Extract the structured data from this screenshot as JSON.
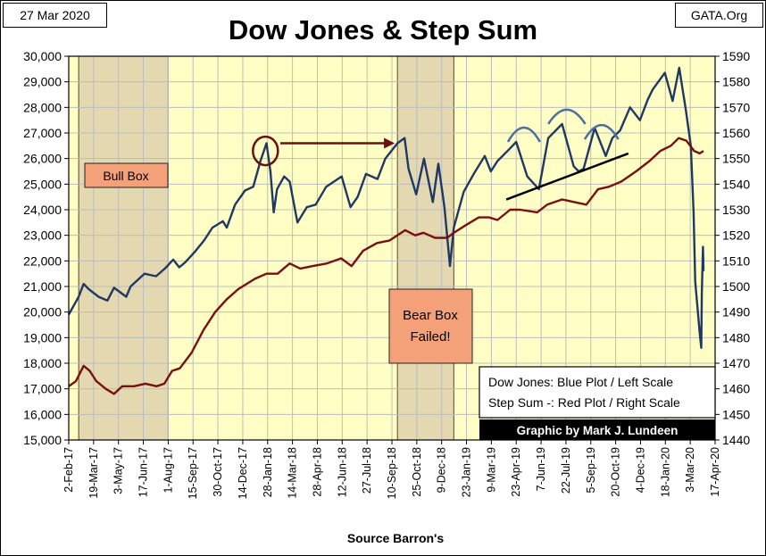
{
  "header": {
    "date": "27 Mar 2020",
    "source_site": "GATA.Org"
  },
  "chart_data": {
    "type": "line",
    "title": "Dow Jones & Step Sum",
    "xlabel": "Source Barron's",
    "x_ticks": [
      "2-Feb-17",
      "19-Mar-17",
      "3-May-17",
      "17-Jun-17",
      "1-Aug-17",
      "15-Sep-17",
      "30-Oct-17",
      "14-Dec-17",
      "28-Jan-18",
      "14-Mar-18",
      "28-Apr-18",
      "12-Jun-18",
      "27-Jul-18",
      "10-Sep-18",
      "25-Oct-18",
      "9-Dec-18",
      "23-Jan-19",
      "9-Mar-19",
      "23-Apr-19",
      "7-Jun-19",
      "22-Jul-19",
      "5-Sep-19",
      "20-Oct-19",
      "4-Dec-19",
      "18-Jan-20",
      "3-Mar-20",
      "17-Apr-20"
    ],
    "x_range": [
      "2017-02-02",
      "2020-04-17"
    ],
    "y_left": {
      "ticks": [
        "15,000",
        "16,000",
        "17,000",
        "18,000",
        "19,000",
        "20,000",
        "21,000",
        "22,000",
        "23,000",
        "24,000",
        "25,000",
        "26,000",
        "27,000",
        "28,000",
        "29,000",
        "30,000"
      ],
      "range": [
        15000,
        30000
      ]
    },
    "y_right": {
      "ticks": [
        "1440",
        "1450",
        "1460",
        "1470",
        "1480",
        "1490",
        "1500",
        "1510",
        "1520",
        "1530",
        "1540",
        "1550",
        "1560",
        "1570",
        "1580",
        "1590"
      ],
      "range": [
        1440,
        1590
      ]
    },
    "grid": true,
    "series": [
      {
        "name": "Dow Jones",
        "axis": "left",
        "color": "#1f3864",
        "points": [
          [
            "2017-02-02",
            19900
          ],
          [
            "2017-02-20",
            20600
          ],
          [
            "2017-03-01",
            21100
          ],
          [
            "2017-03-10",
            20900
          ],
          [
            "2017-03-28",
            20600
          ],
          [
            "2017-04-13",
            20450
          ],
          [
            "2017-04-25",
            20950
          ],
          [
            "2017-05-17",
            20600
          ],
          [
            "2017-05-25",
            21000
          ],
          [
            "2017-06-19",
            21500
          ],
          [
            "2017-07-10",
            21400
          ],
          [
            "2017-07-26",
            21700
          ],
          [
            "2017-08-10",
            22050
          ],
          [
            "2017-08-21",
            21750
          ],
          [
            "2017-09-01",
            21950
          ],
          [
            "2017-09-20",
            22400
          ],
          [
            "2017-10-05",
            22800
          ],
          [
            "2017-10-20",
            23300
          ],
          [
            "2017-11-08",
            23550
          ],
          [
            "2017-11-15",
            23300
          ],
          [
            "2017-11-30",
            24200
          ],
          [
            "2017-12-18",
            24750
          ],
          [
            "2018-01-02",
            24900
          ],
          [
            "2018-01-15",
            25900
          ],
          [
            "2018-01-26",
            26600
          ],
          [
            "2018-02-02",
            25500
          ],
          [
            "2018-02-08",
            23900
          ],
          [
            "2018-02-14",
            24800
          ],
          [
            "2018-02-27",
            25300
          ],
          [
            "2018-03-09",
            25100
          ],
          [
            "2018-03-23",
            23500
          ],
          [
            "2018-04-09",
            24100
          ],
          [
            "2018-04-25",
            24200
          ],
          [
            "2018-05-14",
            24900
          ],
          [
            "2018-06-11",
            25300
          ],
          [
            "2018-06-27",
            24100
          ],
          [
            "2018-07-10",
            24500
          ],
          [
            "2018-07-25",
            25400
          ],
          [
            "2018-08-15",
            25200
          ],
          [
            "2018-08-29",
            26000
          ],
          [
            "2018-09-20",
            26600
          ],
          [
            "2018-10-03",
            26800
          ],
          [
            "2018-10-10",
            25600
          ],
          [
            "2018-10-24",
            24600
          ],
          [
            "2018-11-07",
            26000
          ],
          [
            "2018-11-23",
            24300
          ],
          [
            "2018-12-03",
            25800
          ],
          [
            "2018-12-14",
            24100
          ],
          [
            "2018-12-24",
            21800
          ],
          [
            "2018-12-31",
            23300
          ],
          [
            "2019-01-18",
            24700
          ],
          [
            "2019-02-05",
            25400
          ],
          [
            "2019-02-25",
            26100
          ],
          [
            "2019-03-08",
            25500
          ],
          [
            "2019-03-20",
            25900
          ],
          [
            "2019-04-12",
            26400
          ],
          [
            "2019-04-23",
            26650
          ],
          [
            "2019-05-13",
            25300
          ],
          [
            "2019-06-03",
            24800
          ],
          [
            "2019-06-20",
            26800
          ],
          [
            "2019-07-15",
            27350
          ],
          [
            "2019-08-05",
            25700
          ],
          [
            "2019-08-14",
            25500
          ],
          [
            "2019-08-23",
            25600
          ],
          [
            "2019-09-12",
            27200
          ],
          [
            "2019-10-02",
            26100
          ],
          [
            "2019-10-14",
            26800
          ],
          [
            "2019-10-28",
            27100
          ],
          [
            "2019-11-15",
            28000
          ],
          [
            "2019-12-03",
            27500
          ],
          [
            "2019-12-17",
            28300
          ],
          [
            "2019-12-26",
            28700
          ],
          [
            "2020-01-17",
            29350
          ],
          [
            "2020-01-31",
            28250
          ],
          [
            "2020-02-12",
            29550
          ],
          [
            "2020-02-24",
            27900
          ],
          [
            "2020-03-04",
            26500
          ],
          [
            "2020-03-09",
            23900
          ],
          [
            "2020-03-12",
            21200
          ],
          [
            "2020-03-16",
            20200
          ],
          [
            "2020-03-20",
            19200
          ],
          [
            "2020-03-23",
            18600
          ],
          [
            "2020-03-24",
            20700
          ],
          [
            "2020-03-26",
            22550
          ],
          [
            "2020-03-27",
            21600
          ]
        ]
      },
      {
        "name": "Step Sum",
        "axis": "right",
        "color": "#7b0f0f",
        "points": [
          [
            "2017-02-02",
            1461
          ],
          [
            "2017-02-15",
            1463
          ],
          [
            "2017-03-01",
            1469
          ],
          [
            "2017-03-12",
            1467
          ],
          [
            "2017-03-24",
            1463
          ],
          [
            "2017-04-10",
            1460
          ],
          [
            "2017-04-25",
            1458
          ],
          [
            "2017-05-10",
            1461
          ],
          [
            "2017-05-31",
            1461
          ],
          [
            "2017-06-21",
            1462
          ],
          [
            "2017-07-11",
            1461
          ],
          [
            "2017-07-25",
            1462
          ],
          [
            "2017-08-08",
            1467
          ],
          [
            "2017-08-22",
            1468
          ],
          [
            "2017-09-12",
            1474
          ],
          [
            "2017-10-04",
            1483
          ],
          [
            "2017-10-25",
            1490
          ],
          [
            "2017-11-15",
            1495
          ],
          [
            "2017-12-06",
            1499
          ],
          [
            "2018-01-05",
            1503
          ],
          [
            "2018-01-26",
            1505
          ],
          [
            "2018-02-15",
            1505
          ],
          [
            "2018-03-09",
            1509
          ],
          [
            "2018-03-28",
            1507
          ],
          [
            "2018-04-20",
            1508
          ],
          [
            "2018-05-15",
            1509
          ],
          [
            "2018-06-10",
            1511
          ],
          [
            "2018-06-29",
            1508
          ],
          [
            "2018-07-20",
            1514
          ],
          [
            "2018-08-14",
            1517
          ],
          [
            "2018-09-06",
            1518
          ],
          [
            "2018-10-04",
            1522
          ],
          [
            "2018-10-22",
            1520
          ],
          [
            "2018-11-06",
            1521
          ],
          [
            "2018-11-27",
            1519
          ],
          [
            "2018-12-19",
            1519
          ],
          [
            "2018-12-31",
            1521
          ],
          [
            "2019-01-22",
            1524
          ],
          [
            "2019-02-14",
            1527
          ],
          [
            "2019-03-05",
            1527
          ],
          [
            "2019-03-20",
            1526
          ],
          [
            "2019-04-12",
            1530
          ],
          [
            "2019-04-30",
            1530
          ],
          [
            "2019-05-31",
            1529
          ],
          [
            "2019-06-18",
            1532
          ],
          [
            "2019-07-15",
            1534
          ],
          [
            "2019-08-06",
            1533
          ],
          [
            "2019-08-28",
            1532
          ],
          [
            "2019-09-18",
            1538
          ],
          [
            "2019-10-08",
            1539
          ],
          [
            "2019-10-30",
            1541
          ],
          [
            "2019-11-26",
            1545
          ],
          [
            "2019-12-20",
            1549
          ],
          [
            "2020-01-09",
            1553
          ],
          [
            "2020-01-28",
            1555
          ],
          [
            "2020-02-11",
            1558
          ],
          [
            "2020-02-25",
            1557
          ],
          [
            "2020-03-10",
            1553
          ],
          [
            "2020-03-20",
            1552
          ],
          [
            "2020-03-27",
            1553
          ]
        ]
      }
    ],
    "shaded_regions": [
      {
        "label": "Bull Box",
        "start": "2017-02-20",
        "end": "2017-08-01"
      },
      {
        "label": "Bear Box Failed!",
        "start": "2018-09-20",
        "end": "2018-12-31"
      }
    ],
    "colors": {
      "plot_background": "#ffffc5",
      "shade": "#e3d8b0",
      "label_box": "#f4a17a",
      "gridline": "#bdbdbd",
      "annotation_arrow": "#6b1010",
      "trend_line": "#000000",
      "arc": "#4a6fa0"
    },
    "annotations": {
      "legend_line1": "Dow Jones: Blue Plot / Left Scale",
      "legend_line2": "Step Sum -: Red Plot / Right Scale",
      "credit": "Graphic by Mark J. Lundeen"
    },
    "legend_position": "bottom-right"
  }
}
